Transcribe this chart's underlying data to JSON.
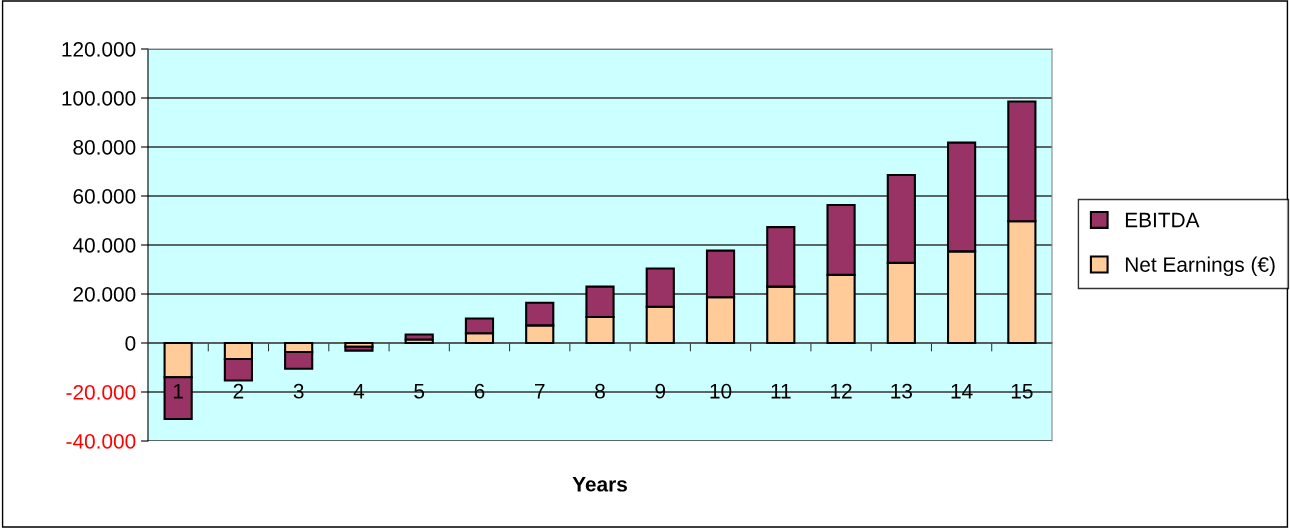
{
  "chart_data": {
    "type": "bar",
    "stacked": true,
    "xlabel": "Years",
    "categories": [
      "1",
      "2",
      "3",
      "4",
      "5",
      "6",
      "7",
      "8",
      "9",
      "10",
      "11",
      "12",
      "13",
      "14",
      "15"
    ],
    "series": [
      {
        "name": "Net Earnings (€)",
        "color": "#ffcc99",
        "values": [
          -14000,
          -6500,
          -3700,
          -1500,
          1400,
          4000,
          7200,
          10600,
          14800,
          18700,
          23000,
          27800,
          32700,
          37400,
          49700
        ]
      },
      {
        "name": "EBITDA",
        "color": "#993366",
        "values": [
          -17000,
          -8800,
          -6800,
          -1600,
          2100,
          6000,
          9200,
          12400,
          15600,
          19000,
          24300,
          28500,
          35900,
          44400,
          48900
        ]
      }
    ],
    "ylim": [
      -40000,
      120000
    ],
    "yticks": [
      {
        "value": -40000,
        "label": "-40.000"
      },
      {
        "value": -20000,
        "label": "-20.000"
      },
      {
        "value": 0,
        "label": "0"
      },
      {
        "value": 20000,
        "label": "20.000"
      },
      {
        "value": 40000,
        "label": "40.000"
      },
      {
        "value": 60000,
        "label": "60.000"
      },
      {
        "value": 80000,
        "label": "80.000"
      },
      {
        "value": 100000,
        "label": "100.000"
      },
      {
        "value": 120000,
        "label": "120.000"
      }
    ],
    "grid": "y",
    "legend": "right"
  }
}
